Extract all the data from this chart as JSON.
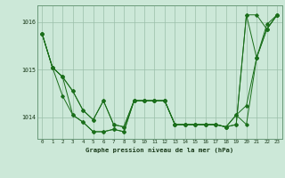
{
  "title": "Graphe pression niveau de la mer (hPa)",
  "x_labels": [
    "0",
    "1",
    "2",
    "3",
    "4",
    "5",
    "6",
    "7",
    "8",
    "9",
    "10",
    "11",
    "12",
    "13",
    "14",
    "15",
    "16",
    "17",
    "18",
    "19",
    "20",
    "21",
    "22",
    "23"
  ],
  "ylim": [
    1013.55,
    1016.35
  ],
  "yticks": [
    1014,
    1015,
    1016
  ],
  "xlim": [
    -0.5,
    23.5
  ],
  "bg_color": "#cce8d8",
  "line_color": "#1a6e1a",
  "grid_color": "#9abfaa",
  "series": {
    "line1": [
      1015.75,
      1015.05,
      1014.85,
      1014.55,
      1014.15,
      1013.95,
      1014.35,
      1013.85,
      1013.8,
      1014.35,
      1014.35,
      1014.35,
      1014.35,
      1013.85,
      1013.85,
      1013.85,
      1013.85,
      1013.85,
      1013.8,
      1014.05,
      1014.25,
      1015.25,
      1015.95,
      1016.15
    ],
    "line2": [
      1015.75,
      1015.05,
      1014.85,
      1014.55,
      1014.15,
      1013.95,
      1014.35,
      1013.85,
      1013.8,
      1014.35,
      1014.35,
      1014.35,
      1014.35,
      1013.85,
      1013.85,
      1013.85,
      1013.85,
      1013.85,
      1013.8,
      1013.85,
      1016.15,
      1016.15,
      1015.85,
      1016.15
    ],
    "line3": [
      1015.75,
      1015.05,
      1014.85,
      1014.05,
      1013.9,
      1013.7,
      1013.7,
      1013.75,
      1013.7,
      1014.35,
      1014.35,
      1014.35,
      1014.35,
      1013.85,
      1013.85,
      1013.85,
      1013.85,
      1013.85,
      1013.8,
      1013.85,
      1016.15,
      1015.25,
      1015.85,
      1016.15
    ],
    "line4": [
      1015.75,
      1015.05,
      1014.45,
      1014.05,
      1013.9,
      1013.7,
      1013.7,
      1013.75,
      1013.7,
      1014.35,
      1014.35,
      1014.35,
      1014.35,
      1013.85,
      1013.85,
      1013.85,
      1013.85,
      1013.85,
      1013.8,
      1014.05,
      1013.85,
      1015.25,
      1015.85,
      1016.15
    ]
  }
}
